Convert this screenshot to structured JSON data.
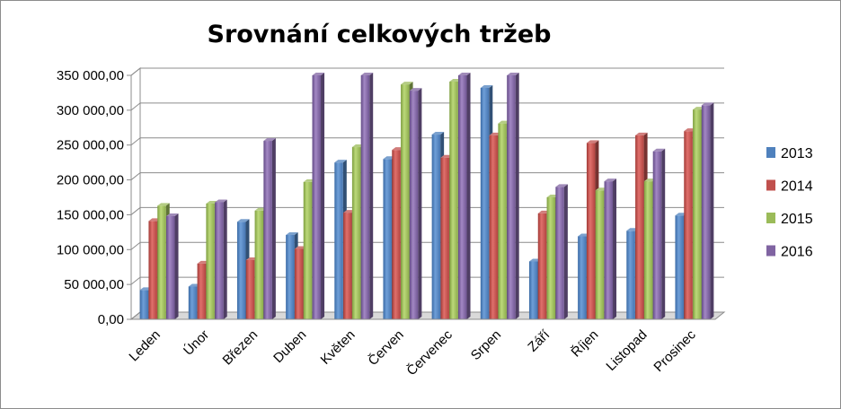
{
  "chart_data": {
    "type": "bar",
    "title": "Srovnání celkových tržeb",
    "categories": [
      "Leden",
      "Únor",
      "Březen",
      "Duben",
      "Květen",
      "Červen",
      "Červenec",
      "Srpen",
      "Září",
      "Říjen",
      "Listopad",
      "Prosinec"
    ],
    "series": [
      {
        "name": "2013",
        "color": "#4f81bd",
        "values": [
          42000,
          47000,
          140000,
          121000,
          225000,
          230000,
          265000,
          332000,
          83000,
          119000,
          127000,
          149000
        ]
      },
      {
        "name": "2014",
        "color": "#c0504d",
        "values": [
          141000,
          80000,
          85000,
          101000,
          153000,
          243000,
          232000,
          264000,
          152000,
          253000,
          264000,
          270000
        ]
      },
      {
        "name": "2015",
        "color": "#9bbb59",
        "values": [
          163000,
          166000,
          156000,
          197000,
          247000,
          337000,
          341000,
          281000,
          175000,
          185000,
          198000,
          301000
        ]
      },
      {
        "name": "2016",
        "color": "#8064a2",
        "values": [
          148000,
          168000,
          256000,
          350000,
          350000,
          328000,
          350000,
          350000,
          190000,
          198000,
          241000,
          307000
        ]
      }
    ],
    "ylim": [
      0,
      350000
    ],
    "ytick_labels": [
      "0,00",
      "50 000,00",
      "100 000,00",
      "150 000,00",
      "200 000,00",
      "250 000,00",
      "300 000,00",
      "350 000,00"
    ],
    "grid": true,
    "legend_position": "right"
  }
}
